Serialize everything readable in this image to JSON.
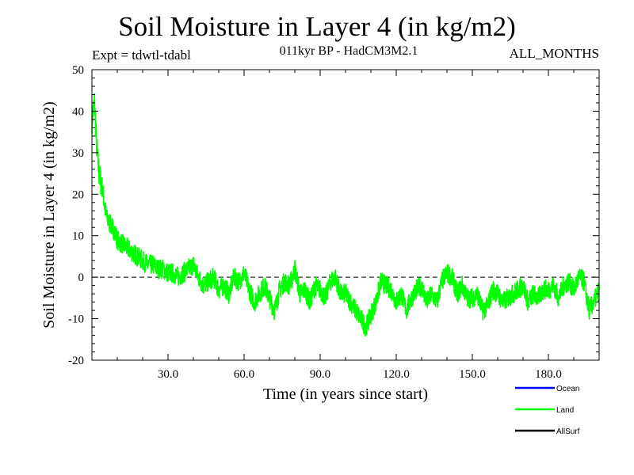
{
  "chart_data": {
    "type": "line",
    "title": "Soil Moisture in Layer 4 (in kg/m2)",
    "subtitle": "011kyr BP - HadCM3M2.1",
    "expt_label": "Expt = tdwtl-tdabl",
    "period_label": "ALL_MONTHS",
    "xlabel": "Time (in years since start)",
    "ylabel": "Soil Moisture in Layer 4 (in kg/m2)",
    "xlim": [
      0,
      200
    ],
    "ylim": [
      -20,
      50
    ],
    "x_ticks": [
      30,
      60,
      90,
      120,
      150,
      180
    ],
    "x_tick_labels": [
      "30.0",
      "60.0",
      "90.0",
      "120.0",
      "150.0",
      "180.0"
    ],
    "y_ticks": [
      -20,
      -10,
      0,
      10,
      20,
      30,
      40,
      50
    ],
    "y_tick_labels": [
      "-20",
      "-10",
      "0",
      "10",
      "20",
      "30",
      "40",
      "50"
    ],
    "reference_line": 0,
    "legend": [
      {
        "name": "Ocean",
        "color": "#0000ff"
      },
      {
        "name": "Land",
        "color": "#00ff00"
      },
      {
        "name": "AllSurf",
        "color": "#000000"
      }
    ],
    "series": [
      {
        "name": "Land",
        "color": "#00ff00",
        "x": [
          0,
          1,
          2,
          3,
          4,
          5,
          6,
          7,
          8,
          9,
          10,
          12,
          14,
          16,
          18,
          20,
          22,
          24,
          26,
          28,
          30,
          32,
          34,
          36,
          38,
          40,
          42,
          44,
          46,
          48,
          50,
          52,
          54,
          56,
          58,
          60,
          62,
          64,
          66,
          68,
          70,
          72,
          74,
          76,
          78,
          80,
          82,
          84,
          86,
          88,
          90,
          92,
          94,
          96,
          98,
          100,
          102,
          104,
          106,
          108,
          110,
          112,
          114,
          116,
          118,
          120,
          122,
          124,
          126,
          128,
          130,
          132,
          134,
          136,
          138,
          140,
          142,
          144,
          146,
          148,
          150,
          152,
          154,
          156,
          158,
          160,
          162,
          164,
          166,
          168,
          170,
          172,
          174,
          176,
          178,
          180,
          182,
          184,
          186,
          188,
          190,
          192,
          194,
          196,
          198,
          200
        ],
        "values": [
          38,
          42,
          30,
          24,
          22,
          17,
          14,
          13,
          12,
          11,
          9,
          8,
          7,
          6,
          5,
          4,
          3,
          3,
          2,
          2,
          1,
          1,
          0,
          1,
          2,
          3,
          0,
          -2,
          -1,
          0,
          -3,
          -2,
          -4,
          0,
          -1,
          1,
          -3,
          -6,
          -4,
          -2,
          -5,
          -8,
          -3,
          -1,
          -2,
          2,
          -4,
          -3,
          -6,
          -2,
          -3,
          -5,
          -1,
          0,
          -4,
          -4,
          -6,
          -8,
          -10,
          -12,
          -9,
          -6,
          -1,
          -2,
          -3,
          -6,
          -4,
          -8,
          -5,
          -3,
          -2,
          -6,
          -4,
          -6,
          -1,
          1,
          0,
          -4,
          -2,
          -5,
          -5,
          -4,
          -8,
          -7,
          -3,
          -4,
          -6,
          -5,
          -4,
          -3,
          -2,
          -6,
          -4,
          -5,
          -3,
          -3,
          -2,
          -5,
          -2,
          -1,
          -3,
          0,
          -1,
          -8,
          -6,
          -3
        ]
      },
      {
        "name": "Ocean",
        "color": "#0000ff",
        "x": [],
        "values": []
      },
      {
        "name": "AllSurf",
        "color": "#000000",
        "x": [],
        "values": []
      }
    ]
  }
}
